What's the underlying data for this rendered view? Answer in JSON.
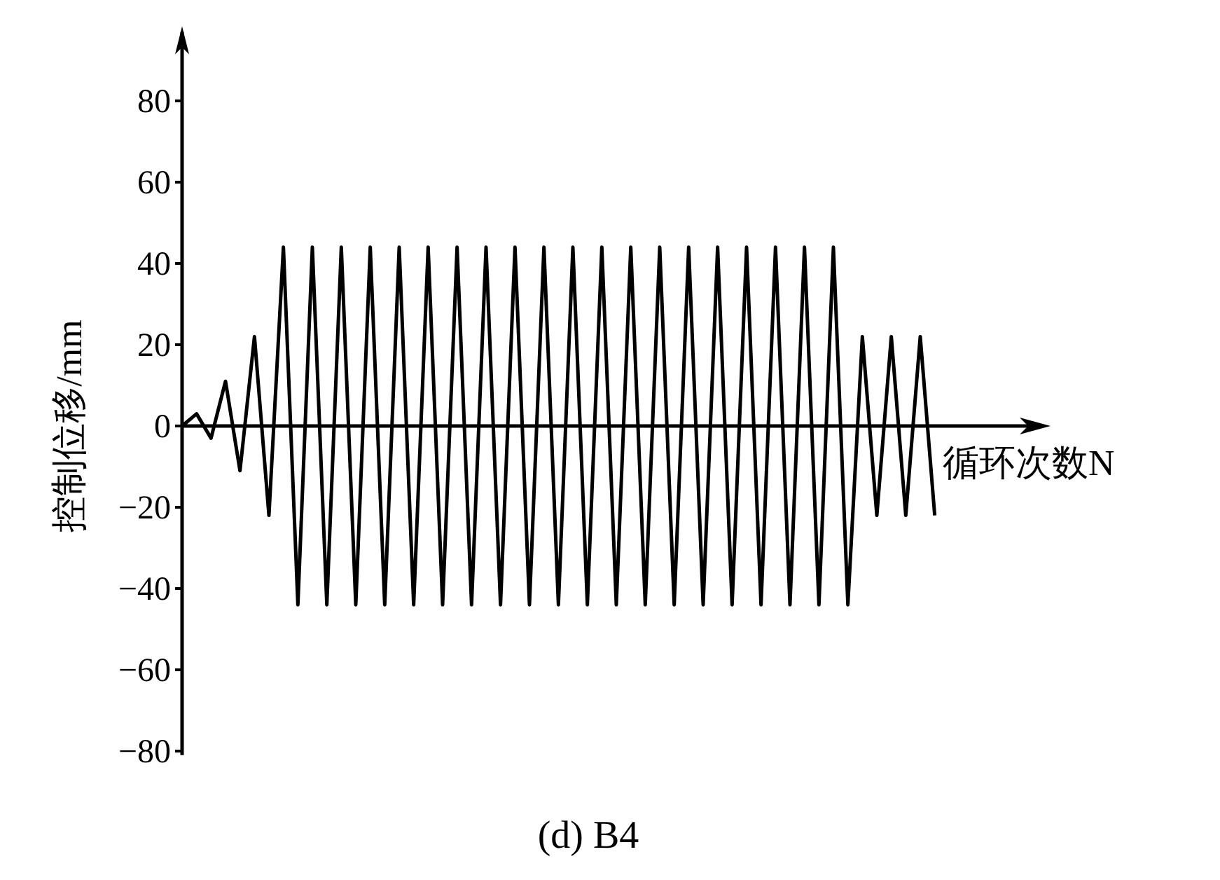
{
  "chart_data": {
    "type": "line",
    "title": "(d) B4",
    "xlabel": "循环次数N",
    "ylabel": "控制位移/mm",
    "categories": [
      null,
      null,
      null,
      null,
      null,
      null,
      null,
      null,
      null,
      null,
      null,
      null,
      null,
      null,
      null,
      null,
      null,
      null,
      null,
      null,
      null,
      null,
      null,
      null,
      null,
      null,
      null,
      null,
      null,
      null,
      null,
      null,
      null,
      null,
      null,
      null,
      null,
      null,
      null,
      null,
      null,
      null,
      null,
      null,
      null,
      null,
      null,
      null,
      null,
      null,
      null,
      null,
      null
    ],
    "series": [
      {
        "color": "#000000",
        "values": [
          0,
          3,
          -3,
          11,
          -11,
          22,
          -22,
          44,
          -44,
          44,
          -44,
          44,
          -44,
          44,
          -44,
          44,
          -44,
          44,
          -44,
          44,
          -44,
          44,
          -44,
          44,
          -44,
          44,
          -44,
          44,
          -44,
          44,
          -44,
          44,
          -44,
          44,
          -44,
          44,
          -44,
          44,
          -44,
          44,
          -44,
          44,
          -44,
          44,
          -44,
          44,
          -44,
          22,
          -22,
          22,
          -22,
          22,
          -22
        ]
      }
    ],
    "ylim": [
      -81,
      97
    ],
    "yticks": [
      -80,
      -60,
      -40,
      -20,
      0,
      20,
      40,
      60,
      80
    ],
    "tick_labels": "y",
    "marker": "none",
    "line_style": "solid"
  }
}
